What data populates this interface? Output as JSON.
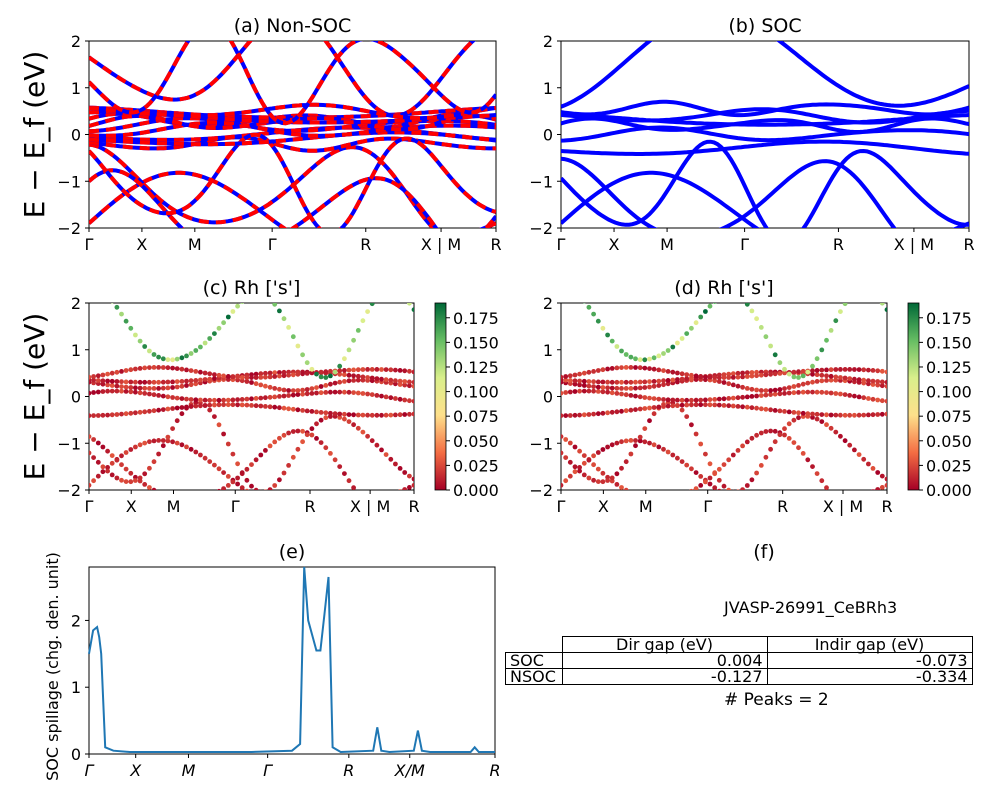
{
  "colors": {
    "nsoc_band": "#0000ff",
    "nsoc_dash": "#ff0000",
    "soc_band": "#0000ff",
    "spillage": "#1f77b4"
  },
  "chart_data": [
    {
      "type": "line",
      "title": "(a) Non-SOC",
      "ylabel": "E − E_f (eV)",
      "ylim": [
        -2,
        2
      ],
      "yticks": [
        "−2",
        "−1",
        "0",
        "1",
        "2"
      ],
      "kpath_labels": [
        "Γ",
        "X",
        "M",
        "Γ",
        "R",
        "X | M",
        "R"
      ],
      "series": [
        {
          "values": [
            -1.9,
            -1.2,
            -0.2,
            0.0,
            0.2,
            0.3,
            0.45,
            1.5
          ]
        },
        {
          "values": [
            -1.8,
            -1.0,
            -0.1,
            0.1,
            0.25,
            0.35,
            0.5,
            1.3
          ]
        }
      ]
    },
    {
      "type": "line",
      "title": "(b) SOC",
      "ylim": [
        -2,
        2
      ],
      "yticks": [
        "−2",
        "−1",
        "0",
        "1",
        "2"
      ],
      "kpath_labels": [
        "Γ",
        "X",
        "M",
        "Γ",
        "R",
        "X | M",
        "R"
      ],
      "series": [
        {
          "values": [
            -1.9,
            -1.5,
            -1.2,
            -0.3,
            0.0,
            0.2,
            0.3,
            0.4,
            0.55,
            1.5
          ]
        }
      ]
    },
    {
      "type": "scatter",
      "title": "(c)  Rh ['s']",
      "ylabel": "E − E_f (eV)",
      "ylim": [
        -2,
        2
      ],
      "yticks": [
        "−2",
        "−1",
        "0",
        "1",
        "2"
      ],
      "kpath_labels": [
        "Γ",
        "X",
        "M",
        "Γ",
        "R",
        "X | M",
        "R"
      ],
      "colorbar_ticks": [
        "0.000",
        "0.025",
        "0.050",
        "0.075",
        "0.100",
        "0.125",
        "0.150",
        "0.175"
      ],
      "colorbar_range": [
        0,
        0.19
      ]
    },
    {
      "type": "scatter",
      "title": "(d) Rh ['s']",
      "ylim": [
        -2,
        2
      ],
      "yticks": [
        "−2",
        "−1",
        "0",
        "1",
        "2"
      ],
      "kpath_labels": [
        "Γ",
        "X",
        "M",
        "Γ",
        "R",
        "X | M",
        "R"
      ],
      "colorbar_ticks": [
        "0.000",
        "0.025",
        "0.050",
        "0.075",
        "0.100",
        "0.125",
        "0.150",
        "0.175"
      ],
      "colorbar_range": [
        0,
        0.19
      ]
    },
    {
      "type": "line",
      "title": "(e)",
      "ylabel": "SOC spillage (chg. den. unit)",
      "ylim": [
        0,
        2.8
      ],
      "yticks": [
        "0",
        "1",
        "2"
      ],
      "kpath_labels": [
        "Γ",
        "X",
        "M",
        "Γ",
        "R",
        "X/M",
        "R"
      ],
      "x": [
        0,
        0.01,
        0.02,
        0.025,
        0.03,
        0.04,
        0.06,
        0.1,
        0.2,
        0.3,
        0.4,
        0.5,
        0.52,
        0.53,
        0.54,
        0.56,
        0.57,
        0.58,
        0.59,
        0.6,
        0.62,
        0.7,
        0.71,
        0.72,
        0.74,
        0.8,
        0.81,
        0.82,
        0.84,
        0.9,
        0.94,
        0.95,
        0.96,
        1.0
      ],
      "values": [
        1.5,
        1.85,
        1.9,
        1.75,
        1.5,
        0.1,
        0.05,
        0.03,
        0.03,
        0.03,
        0.03,
        0.05,
        0.15,
        2.8,
        2.0,
        1.55,
        1.55,
        2.1,
        2.65,
        0.1,
        0.03,
        0.05,
        0.4,
        0.05,
        0.03,
        0.05,
        0.35,
        0.05,
        0.03,
        0.03,
        0.03,
        0.1,
        0.03,
        0.03
      ]
    }
  ],
  "panel_f": {
    "title": "(f)",
    "material": "JVASP-26991_CeBRh3",
    "table": {
      "col_dir": "Dir gap (eV)",
      "col_indir": "Indir gap (eV)",
      "rows": [
        {
          "label": "SOC",
          "dir": "0.004",
          "indir": "-0.073"
        },
        {
          "label": "NSOC",
          "dir": "-0.127",
          "indir": "-0.334"
        }
      ]
    },
    "peaks": "# Peaks = 2"
  }
}
